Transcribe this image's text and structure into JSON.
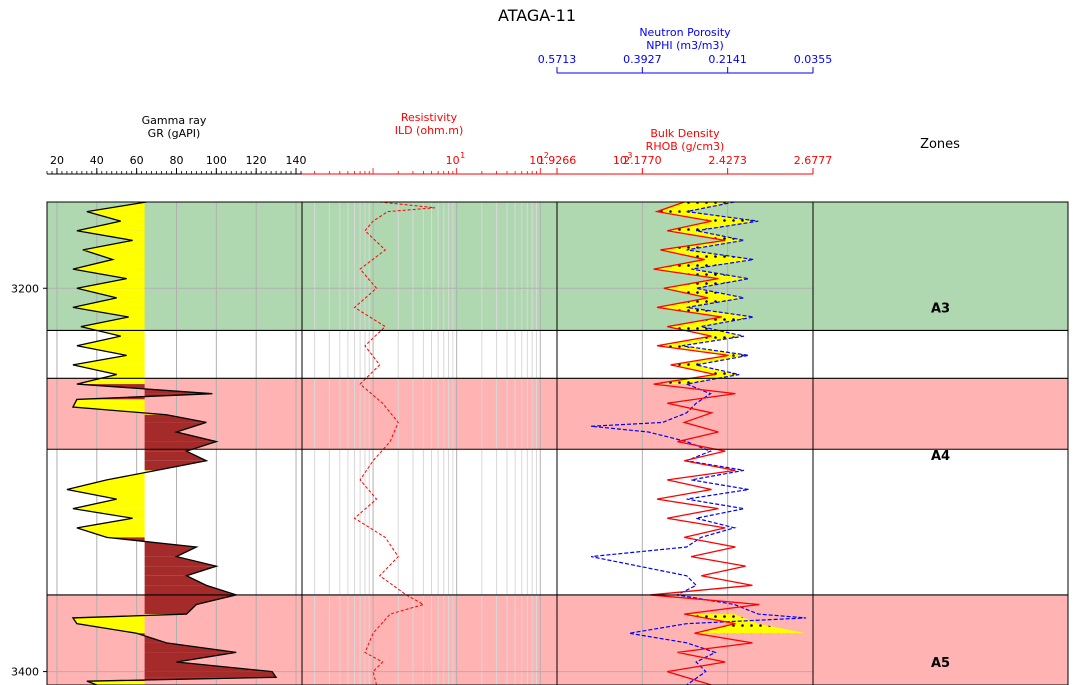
{
  "colors": {
    "neutron": "#0000ff",
    "resistivity": "#ff0000",
    "density": "#ff0000",
    "gamma": "#000000",
    "sand_fill": "#ffff00",
    "shale_fill": "#a52a2a",
    "crossover_fill": "#ffff00",
    "zone_A3": "#b0d8b0",
    "zone_A4": "#ffb3b3",
    "zone_A5": "#ffb3b3"
  },
  "chart_data": {
    "type": "line",
    "title": "ATAGA-11",
    "depth_range": [
      3155,
      3407
    ],
    "depth_ticks": [
      3200,
      3400
    ],
    "depth_tick_labels": [
      "3200",
      "3400"
    ],
    "tracks": {
      "gamma": {
        "title": "Gamma ray",
        "label": "GR (gAPI)",
        "range": [
          15,
          143
        ],
        "ticks": [
          20,
          40,
          60,
          80,
          100,
          120,
          140
        ],
        "tick_labels": [
          "20",
          "40",
          "60",
          "80",
          "100",
          "120",
          "140"
        ],
        "cutoff": 64,
        "series": [
          [
            3155,
            65
          ],
          [
            3160,
            35
          ],
          [
            3165,
            52
          ],
          [
            3170,
            30
          ],
          [
            3175,
            58
          ],
          [
            3180,
            33
          ],
          [
            3185,
            48
          ],
          [
            3190,
            28
          ],
          [
            3195,
            55
          ],
          [
            3200,
            30
          ],
          [
            3205,
            50
          ],
          [
            3210,
            28
          ],
          [
            3215,
            56
          ],
          [
            3220,
            32
          ],
          [
            3225,
            52
          ],
          [
            3230,
            30
          ],
          [
            3235,
            55
          ],
          [
            3240,
            28
          ],
          [
            3245,
            50
          ],
          [
            3250,
            30
          ],
          [
            3255,
            98
          ],
          [
            3258,
            30
          ],
          [
            3262,
            28
          ],
          [
            3266,
            75
          ],
          [
            3270,
            95
          ],
          [
            3275,
            80
          ],
          [
            3280,
            100
          ],
          [
            3285,
            85
          ],
          [
            3290,
            95
          ],
          [
            3295,
            70
          ],
          [
            3300,
            45
          ],
          [
            3305,
            25
          ],
          [
            3310,
            50
          ],
          [
            3315,
            28
          ],
          [
            3320,
            58
          ],
          [
            3325,
            30
          ],
          [
            3330,
            45
          ],
          [
            3335,
            90
          ],
          [
            3340,
            80
          ],
          [
            3345,
            100
          ],
          [
            3350,
            85
          ],
          [
            3355,
            95
          ],
          [
            3360,
            110
          ],
          [
            3365,
            90
          ],
          [
            3370,
            85
          ],
          [
            3372,
            28
          ],
          [
            3375,
            30
          ],
          [
            3380,
            60
          ],
          [
            3385,
            75
          ],
          [
            3390,
            110
          ],
          [
            3395,
            80
          ],
          [
            3400,
            128
          ],
          [
            3403,
            130
          ],
          [
            3405,
            35
          ],
          [
            3407,
            40
          ]
        ]
      },
      "resistivity": {
        "title": "Resistivity",
        "label": "ILD (ohm.m)",
        "scale": "log",
        "range_exp": [
          -0.85,
          2.2
        ],
        "tick_exps": [
          1,
          2,
          3
        ],
        "tick_labels": [
          "10",
          "10",
          "10"
        ],
        "tick_superscripts": [
          "1",
          "2",
          "3"
        ],
        "series": [
          [
            3155,
            1.2
          ],
          [
            3158,
            5.5
          ],
          [
            3160,
            1.5
          ],
          [
            3165,
            1.0
          ],
          [
            3170,
            0.8
          ],
          [
            3180,
            1.4
          ],
          [
            3190,
            0.7
          ],
          [
            3200,
            1.1
          ],
          [
            3210,
            0.6
          ],
          [
            3220,
            1.4
          ],
          [
            3230,
            0.8
          ],
          [
            3240,
            1.2
          ],
          [
            3250,
            0.7
          ],
          [
            3260,
            1.3
          ],
          [
            3270,
            2.0
          ],
          [
            3280,
            1.6
          ],
          [
            3290,
            1.0
          ],
          [
            3300,
            0.7
          ],
          [
            3310,
            1.1
          ],
          [
            3320,
            0.6
          ],
          [
            3330,
            1.4
          ],
          [
            3340,
            2.0
          ],
          [
            3350,
            1.2
          ],
          [
            3360,
            2.5
          ],
          [
            3365,
            4.0
          ],
          [
            3370,
            1.6
          ],
          [
            3380,
            1.0
          ],
          [
            3390,
            0.8
          ],
          [
            3395,
            1.3
          ],
          [
            3400,
            1.0
          ],
          [
            3407,
            1.1
          ]
        ]
      },
      "density": {
        "title": "Bulk Density",
        "label": "RHOB (g/cm3)",
        "range": [
          1.9266,
          2.6777
        ],
        "ticks": [
          1.9266,
          2.177,
          2.4273,
          2.6777
        ],
        "tick_labels": [
          "1.9266",
          "2.1770",
          "2.4273",
          "2.6777"
        ],
        "series": [
          [
            3155,
            2.3
          ],
          [
            3160,
            2.22
          ],
          [
            3165,
            2.38
          ],
          [
            3170,
            2.25
          ],
          [
            3175,
            2.42
          ],
          [
            3180,
            2.23
          ],
          [
            3185,
            2.36
          ],
          [
            3190,
            2.21
          ],
          [
            3195,
            2.4
          ],
          [
            3200,
            2.24
          ],
          [
            3205,
            2.37
          ],
          [
            3210,
            2.22
          ],
          [
            3215,
            2.41
          ],
          [
            3220,
            2.25
          ],
          [
            3225,
            2.38
          ],
          [
            3230,
            2.22
          ],
          [
            3235,
            2.43
          ],
          [
            3240,
            2.26
          ],
          [
            3245,
            2.39
          ],
          [
            3250,
            2.21
          ],
          [
            3255,
            2.45
          ],
          [
            3260,
            2.25
          ],
          [
            3265,
            2.38
          ],
          [
            3270,
            2.3
          ],
          [
            3275,
            2.4
          ],
          [
            3280,
            2.28
          ],
          [
            3285,
            2.42
          ],
          [
            3290,
            2.3
          ],
          [
            3295,
            2.45
          ],
          [
            3300,
            2.25
          ],
          [
            3305,
            2.38
          ],
          [
            3310,
            2.22
          ],
          [
            3315,
            2.4
          ],
          [
            3320,
            2.25
          ],
          [
            3325,
            2.42
          ],
          [
            3330,
            2.3
          ],
          [
            3335,
            2.45
          ],
          [
            3340,
            2.32
          ],
          [
            3345,
            2.48
          ],
          [
            3350,
            2.35
          ],
          [
            3355,
            2.5
          ],
          [
            3360,
            2.2
          ],
          [
            3365,
            2.52
          ],
          [
            3370,
            2.3
          ],
          [
            3375,
            2.45
          ],
          [
            3380,
            2.33
          ],
          [
            3385,
            2.5
          ],
          [
            3390,
            2.28
          ],
          [
            3395,
            2.42
          ],
          [
            3400,
            2.25
          ],
          [
            3407,
            2.38
          ]
        ]
      },
      "neutron": {
        "title": "Neutron Porosity",
        "label": "NPHI (m3/m3)",
        "range": [
          0.5713,
          0.0355
        ],
        "ticks": [
          0.5713,
          0.3927,
          0.2141,
          0.0355
        ],
        "tick_labels": [
          "0.5713",
          "0.3927",
          "0.2141",
          "0.0355"
        ],
        "series": [
          [
            3155,
            0.2
          ],
          [
            3160,
            0.3
          ],
          [
            3165,
            0.15
          ],
          [
            3170,
            0.28
          ],
          [
            3175,
            0.18
          ],
          [
            3180,
            0.3
          ],
          [
            3185,
            0.16
          ],
          [
            3190,
            0.29
          ],
          [
            3195,
            0.17
          ],
          [
            3200,
            0.28
          ],
          [
            3205,
            0.18
          ],
          [
            3210,
            0.3
          ],
          [
            3215,
            0.16
          ],
          [
            3220,
            0.27
          ],
          [
            3225,
            0.18
          ],
          [
            3230,
            0.31
          ],
          [
            3235,
            0.17
          ],
          [
            3240,
            0.28
          ],
          [
            3245,
            0.19
          ],
          [
            3250,
            0.3
          ],
          [
            3255,
            0.25
          ],
          [
            3260,
            0.28
          ],
          [
            3265,
            0.3
          ],
          [
            3270,
            0.35
          ],
          [
            3272,
            0.5
          ],
          [
            3275,
            0.38
          ],
          [
            3280,
            0.3
          ],
          [
            3285,
            0.25
          ],
          [
            3290,
            0.3
          ],
          [
            3295,
            0.18
          ],
          [
            3300,
            0.29
          ],
          [
            3305,
            0.17
          ],
          [
            3310,
            0.3
          ],
          [
            3315,
            0.18
          ],
          [
            3320,
            0.28
          ],
          [
            3325,
            0.2
          ],
          [
            3330,
            0.27
          ],
          [
            3335,
            0.3
          ],
          [
            3340,
            0.5
          ],
          [
            3345,
            0.4
          ],
          [
            3350,
            0.3
          ],
          [
            3355,
            0.28
          ],
          [
            3360,
            0.32
          ],
          [
            3365,
            0.2
          ],
          [
            3370,
            0.15
          ],
          [
            3372,
            0.05
          ],
          [
            3375,
            0.3
          ],
          [
            3380,
            0.42
          ],
          [
            3385,
            0.3
          ],
          [
            3390,
            0.24
          ],
          [
            3395,
            0.28
          ],
          [
            3400,
            0.26
          ],
          [
            3407,
            0.3
          ]
        ]
      }
    },
    "zones": {
      "title": "Zones",
      "items": [
        {
          "name": "A3",
          "top": 3155,
          "base": 3222,
          "label_depth": 3210,
          "color_key": "zone_A3"
        },
        {
          "name": "A4",
          "top": 3247,
          "base": 3284,
          "label_depth": 3287,
          "color_key": "zone_A4"
        },
        {
          "name": "A5",
          "top": 3360,
          "base": 3407,
          "label_depth": 3395,
          "color_key": "zone_A5"
        }
      ]
    }
  }
}
